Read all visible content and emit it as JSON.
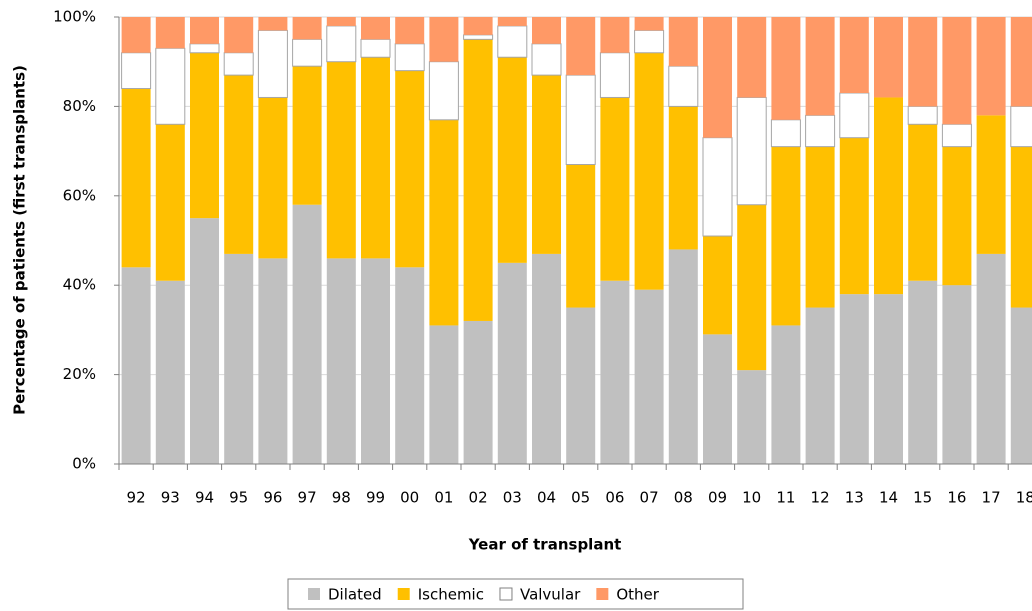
{
  "chart_data": {
    "type": "stacked_bar",
    "x_label": "Year of transplant",
    "y_label": "Percentage of patients (first transplants)",
    "categories": [
      "92",
      "93",
      "94",
      "95",
      "96",
      "97",
      "98",
      "99",
      "00",
      "01",
      "02",
      "03",
      "04",
      "05",
      "06",
      "07",
      "08",
      "09",
      "10",
      "11",
      "12",
      "13",
      "14",
      "15",
      "16",
      "17",
      "18"
    ],
    "series": [
      {
        "name": "Dilated",
        "color": "#c0c0c0",
        "values": [
          44,
          41,
          55,
          47,
          46,
          58,
          46,
          46,
          44,
          31,
          32,
          45,
          47,
          35,
          41,
          39,
          48,
          29,
          21,
          31,
          35,
          38,
          38,
          41,
          40,
          47,
          35
        ]
      },
      {
        "name": "Ischemic",
        "color": "#ffc000",
        "values": [
          40,
          35,
          37,
          40,
          36,
          31,
          44,
          45,
          44,
          46,
          63,
          46,
          40,
          32,
          41,
          53,
          32,
          22,
          37,
          40,
          36,
          35,
          44,
          35,
          31,
          31,
          36
        ]
      },
      {
        "name": "Valvular",
        "color": "#ffffff",
        "values": [
          8,
          17,
          2,
          5,
          15,
          6,
          8,
          4,
          6,
          13,
          1,
          7,
          7,
          20,
          10,
          5,
          9,
          22,
          24,
          6,
          7,
          10,
          0,
          4,
          5,
          0,
          9
        ]
      },
      {
        "name": "Other",
        "color": "#ff9966",
        "values": [
          8,
          7,
          6,
          8,
          3,
          5,
          2,
          5,
          6,
          10,
          4,
          2,
          6,
          13,
          8,
          3,
          11,
          27,
          18,
          23,
          22,
          17,
          18,
          20,
          24,
          22,
          20
        ]
      }
    ],
    "ylim": [
      0,
      100
    ],
    "yticks": [
      {
        "value": 0,
        "label": "0%"
      },
      {
        "value": 20,
        "label": "20%"
      },
      {
        "value": 40,
        "label": "40%"
      },
      {
        "value": 60,
        "label": "60%"
      },
      {
        "value": 80,
        "label": "80%"
      },
      {
        "value": 100,
        "label": "100%"
      }
    ],
    "grid": true,
    "legend": "bottom"
  }
}
